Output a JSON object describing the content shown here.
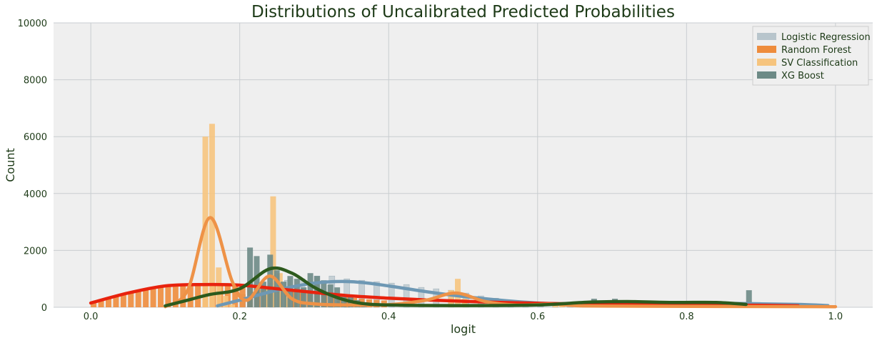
{
  "chart_data": {
    "type": "bar",
    "title": "Distributions of Uncalibrated Predicted Probabilities",
    "xlabel": "logit",
    "ylabel": "Count",
    "xlim": [
      -0.05,
      1.05
    ],
    "ylim": [
      0,
      10000
    ],
    "xticks": [
      0.0,
      0.2,
      0.4,
      0.6,
      0.8,
      1.0
    ],
    "xtick_labels": [
      "0.0",
      "0.2",
      "0.4",
      "0.6",
      "0.8",
      "1.0"
    ],
    "yticks": [
      0,
      2000,
      4000,
      6000,
      8000,
      10000
    ],
    "ytick_labels": [
      "0",
      "2000",
      "4000",
      "6000",
      "8000",
      "10000"
    ],
    "grid": true,
    "legend_position": "top-right",
    "series": [
      {
        "name": "Logistic Regression",
        "color": "#b8c5cc",
        "kde_color": "#6e98b4",
        "bins": [
          [
            0.2,
            450
          ],
          [
            0.22,
            700
          ],
          [
            0.24,
            850
          ],
          [
            0.26,
            950
          ],
          [
            0.28,
            1000
          ],
          [
            0.3,
            1100
          ],
          [
            0.32,
            1100
          ],
          [
            0.34,
            1000
          ],
          [
            0.36,
            950
          ],
          [
            0.38,
            900
          ],
          [
            0.4,
            850
          ],
          [
            0.42,
            800
          ],
          [
            0.44,
            700
          ],
          [
            0.46,
            650
          ],
          [
            0.48,
            600
          ],
          [
            0.5,
            500
          ],
          [
            0.52,
            400
          ],
          [
            0.54,
            320
          ],
          [
            0.56,
            250
          ],
          [
            0.58,
            200
          ],
          [
            0.6,
            160
          ],
          [
            0.62,
            140
          ],
          [
            0.64,
            120
          ],
          [
            0.66,
            110
          ],
          [
            0.68,
            110
          ],
          [
            0.7,
            130
          ],
          [
            0.72,
            150
          ],
          [
            0.74,
            170
          ],
          [
            0.76,
            180
          ],
          [
            0.78,
            180
          ],
          [
            0.8,
            170
          ],
          [
            0.82,
            150
          ],
          [
            0.84,
            140
          ],
          [
            0.86,
            130
          ],
          [
            0.88,
            120
          ],
          [
            0.9,
            110
          ],
          [
            0.92,
            100
          ],
          [
            0.94,
            90
          ],
          [
            0.96,
            80
          ],
          [
            0.98,
            60
          ]
        ],
        "kde": [
          [
            0.17,
            50
          ],
          [
            0.2,
            250
          ],
          [
            0.25,
            600
          ],
          [
            0.3,
            850
          ],
          [
            0.35,
            900
          ],
          [
            0.4,
            750
          ],
          [
            0.45,
            550
          ],
          [
            0.5,
            380
          ],
          [
            0.55,
            250
          ],
          [
            0.6,
            150
          ],
          [
            0.65,
            110
          ],
          [
            0.7,
            120
          ],
          [
            0.75,
            140
          ],
          [
            0.8,
            150
          ],
          [
            0.85,
            140
          ],
          [
            0.9,
            120
          ],
          [
            0.95,
            100
          ],
          [
            0.99,
            60
          ]
        ]
      },
      {
        "name": "Random Forest",
        "color": "#ee8c3c",
        "kde_color": "#e8230e",
        "bins": [
          [
            0.0,
            150
          ],
          [
            0.01,
            250
          ],
          [
            0.02,
            320
          ],
          [
            0.03,
            400
          ],
          [
            0.04,
            470
          ],
          [
            0.05,
            540
          ],
          [
            0.06,
            600
          ],
          [
            0.07,
            650
          ],
          [
            0.08,
            700
          ],
          [
            0.09,
            730
          ],
          [
            0.1,
            760
          ],
          [
            0.11,
            780
          ],
          [
            0.12,
            800
          ],
          [
            0.13,
            810
          ],
          [
            0.14,
            820
          ],
          [
            0.15,
            810
          ],
          [
            0.16,
            800
          ],
          [
            0.17,
            790
          ],
          [
            0.18,
            780
          ],
          [
            0.19,
            760
          ],
          [
            0.2,
            740
          ],
          [
            0.21,
            720
          ],
          [
            0.22,
            700
          ],
          [
            0.23,
            680
          ],
          [
            0.24,
            650
          ],
          [
            0.25,
            620
          ],
          [
            0.26,
            600
          ],
          [
            0.27,
            570
          ],
          [
            0.28,
            540
          ],
          [
            0.29,
            510
          ],
          [
            0.3,
            480
          ],
          [
            0.31,
            450
          ],
          [
            0.32,
            420
          ],
          [
            0.33,
            390
          ],
          [
            0.34,
            360
          ],
          [
            0.35,
            330
          ],
          [
            0.36,
            300
          ],
          [
            0.37,
            280
          ],
          [
            0.38,
            260
          ],
          [
            0.39,
            240
          ]
        ],
        "kde": [
          [
            0.0,
            150
          ],
          [
            0.05,
            500
          ],
          [
            0.1,
            750
          ],
          [
            0.15,
            800
          ],
          [
            0.2,
            780
          ],
          [
            0.25,
            650
          ],
          [
            0.3,
            520
          ],
          [
            0.35,
            400
          ],
          [
            0.4,
            320
          ],
          [
            0.45,
            260
          ],
          [
            0.5,
            210
          ],
          [
            0.55,
            170
          ],
          [
            0.6,
            140
          ],
          [
            0.65,
            120
          ],
          [
            0.7,
            110
          ],
          [
            0.75,
            100
          ],
          [
            0.8,
            90
          ],
          [
            0.85,
            80
          ],
          [
            0.9,
            70
          ],
          [
            0.95,
            50
          ]
        ]
      },
      {
        "name": "SV Classification",
        "color": "#f6c47e",
        "kde_color": "#ee9247",
        "bins": [
          [
            0.15,
            6000
          ],
          [
            0.159,
            6450
          ],
          [
            0.168,
            1400
          ],
          [
            0.177,
            400
          ],
          [
            0.186,
            100
          ],
          [
            0.232,
            700
          ],
          [
            0.241,
            3900
          ],
          [
            0.25,
            1200
          ],
          [
            0.259,
            600
          ],
          [
            0.295,
            200
          ],
          [
            0.48,
            600
          ],
          [
            0.489,
            1000
          ],
          [
            0.498,
            300
          ],
          [
            0.62,
            100
          ],
          [
            0.629,
            150
          ]
        ],
        "kde": [
          [
            0.1,
            20
          ],
          [
            0.13,
            600
          ],
          [
            0.16,
            3150
          ],
          [
            0.19,
            900
          ],
          [
            0.21,
            250
          ],
          [
            0.24,
            1100
          ],
          [
            0.27,
            300
          ],
          [
            0.3,
            120
          ],
          [
            0.35,
            80
          ],
          [
            0.4,
            90
          ],
          [
            0.45,
            250
          ],
          [
            0.49,
            500
          ],
          [
            0.53,
            200
          ],
          [
            0.57,
            80
          ],
          [
            0.62,
            110
          ],
          [
            0.65,
            60
          ],
          [
            0.7,
            40
          ],
          [
            1.0,
            20
          ]
        ]
      },
      {
        "name": "XG Boost",
        "color": "#6d8a86",
        "kde_color": "#2d5a1d",
        "bins": [
          [
            0.21,
            2100
          ],
          [
            0.219,
            1800
          ],
          [
            0.228,
            900
          ],
          [
            0.237,
            1850
          ],
          [
            0.246,
            1300
          ],
          [
            0.255,
            900
          ],
          [
            0.264,
            1100
          ],
          [
            0.273,
            1000
          ],
          [
            0.282,
            700
          ],
          [
            0.291,
            1200
          ],
          [
            0.3,
            1100
          ],
          [
            0.309,
            950
          ],
          [
            0.318,
            800
          ],
          [
            0.327,
            700
          ],
          [
            0.336,
            450
          ],
          [
            0.345,
            350
          ],
          [
            0.354,
            250
          ],
          [
            0.363,
            150
          ],
          [
            0.672,
            300
          ],
          [
            0.7,
            300
          ],
          [
            0.88,
            600
          ]
        ],
        "kde": [
          [
            0.1,
            50
          ],
          [
            0.13,
            250
          ],
          [
            0.16,
            450
          ],
          [
            0.2,
            650
          ],
          [
            0.24,
            1350
          ],
          [
            0.27,
            1200
          ],
          [
            0.3,
            700
          ],
          [
            0.33,
            350
          ],
          [
            0.36,
            150
          ],
          [
            0.4,
            80
          ],
          [
            0.5,
            60
          ],
          [
            0.6,
            80
          ],
          [
            0.67,
            180
          ],
          [
            0.72,
            200
          ],
          [
            0.78,
            170
          ],
          [
            0.84,
            170
          ],
          [
            0.88,
            100
          ]
        ]
      }
    ]
  }
}
